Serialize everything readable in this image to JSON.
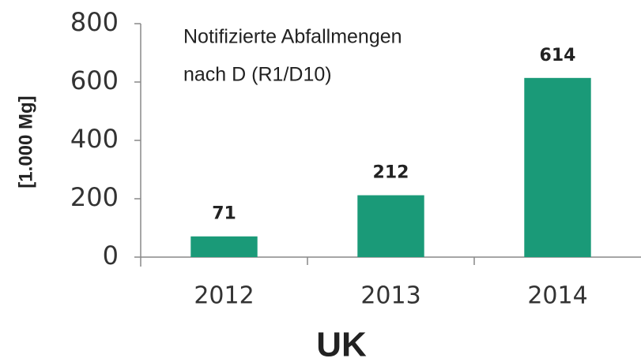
{
  "chart_data": {
    "type": "bar",
    "title": [
      "Notifizierte Abfallmengen",
      "nach D (R1/D10)"
    ],
    "y_axis_label": "[1.000 Mg]",
    "x_axis_label": "UK",
    "categories": [
      "2012",
      "2013",
      "2014"
    ],
    "values": [
      71,
      212,
      614
    ],
    "color": "#1a9a78",
    "ylim": [
      0,
      800
    ],
    "yticks": [
      0,
      200,
      400,
      600,
      800
    ]
  }
}
